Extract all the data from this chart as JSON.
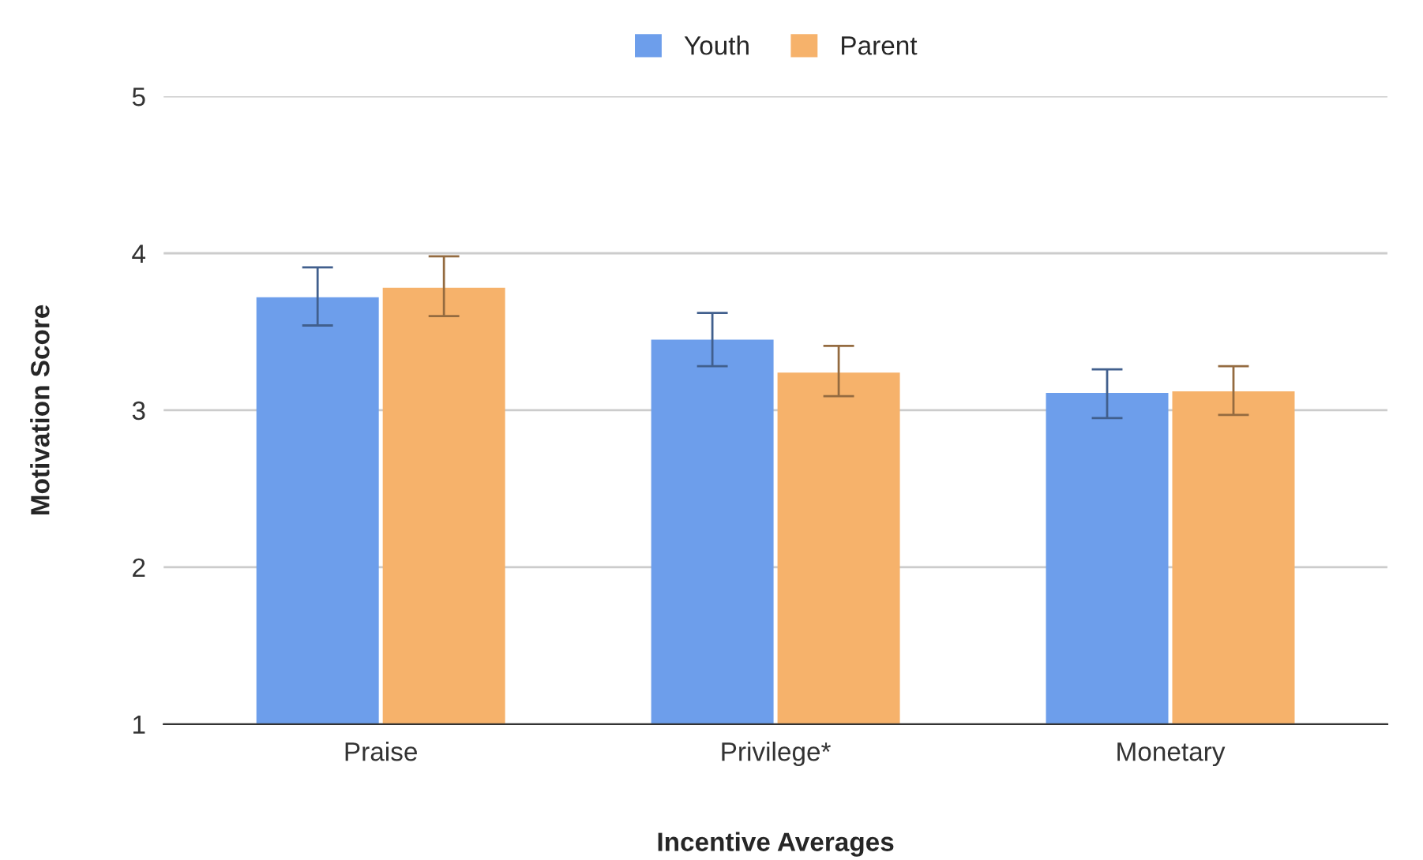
{
  "chart_data": {
    "type": "bar",
    "xlabel": "Incentive Averages",
    "ylabel": "Motivation Score",
    "categories": [
      "Praise",
      "Privilege*",
      "Monetary"
    ],
    "series": [
      {
        "name": "Youth",
        "color": "#6d9eeb",
        "values": [
          3.72,
          3.45,
          3.11
        ],
        "errors": [
          [
            3.54,
            3.91
          ],
          [
            3.28,
            3.62
          ],
          [
            2.95,
            3.26
          ]
        ]
      },
      {
        "name": "Parent",
        "color": "#f6b26b",
        "values": [
          3.78,
          3.24,
          3.12
        ],
        "errors": [
          [
            3.6,
            3.98
          ],
          [
            3.09,
            3.41
          ],
          [
            2.97,
            3.28
          ]
        ]
      }
    ],
    "ylim": [
      1,
      5
    ],
    "yticks": [
      1,
      2,
      3,
      4,
      5
    ],
    "grid": "y",
    "legend": "top"
  }
}
